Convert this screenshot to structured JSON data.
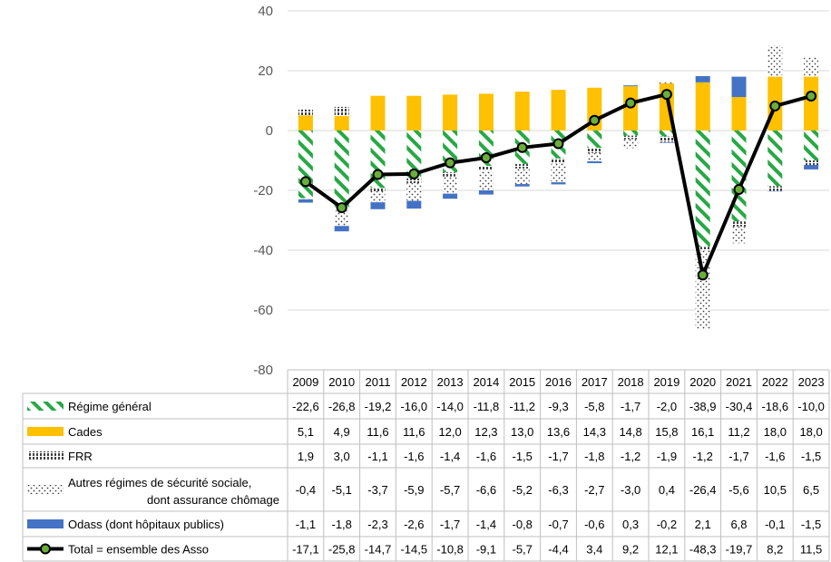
{
  "chart_data": {
    "type": "bar",
    "stacked": true,
    "years": [
      "2009",
      "2010",
      "2011",
      "2012",
      "2013",
      "2014",
      "2015",
      "2016",
      "2017",
      "2018",
      "2019",
      "2020",
      "2021",
      "2022",
      "2023"
    ],
    "y_ticks": [
      "40",
      "20",
      "0",
      "-20",
      "-40",
      "-60",
      "-80"
    ],
    "ylim": [
      -80,
      40
    ],
    "grid": true,
    "legend": "data table below chart",
    "series": [
      {
        "name": "Régime général",
        "kind": "bar",
        "pattern": "diagonal-stripes",
        "color": "#27A844",
        "values": [
          -22.6,
          -26.8,
          -19.2,
          -16.0,
          -14.0,
          -11.8,
          -11.2,
          -9.3,
          -5.8,
          -1.7,
          -2.0,
          -38.9,
          -30.4,
          -18.6,
          -10.0
        ],
        "labels": [
          "-22,6",
          "-26,8",
          "-19,2",
          "-16,0",
          "-14,0",
          "-11,8",
          "-11,2",
          "-9,3",
          "-5,8",
          "-1,7",
          "-2,0",
          "-38,9",
          "-30,4",
          "-18,6",
          "-10,0"
        ]
      },
      {
        "name": "Cades",
        "kind": "bar",
        "pattern": "solid",
        "color": "#FFC000",
        "values": [
          5.1,
          4.9,
          11.6,
          11.6,
          12.0,
          12.3,
          13.0,
          13.6,
          14.3,
          14.8,
          15.8,
          16.1,
          11.2,
          18.0,
          18.0
        ],
        "labels": [
          "5,1",
          "4,9",
          "11,6",
          "11,6",
          "12,0",
          "12,3",
          "13,0",
          "13,6",
          "14,3",
          "14,8",
          "15,8",
          "16,1",
          "11,2",
          "18,0",
          "18,0"
        ]
      },
      {
        "name": "FRR",
        "kind": "bar",
        "pattern": "vertical-dashes",
        "color": "#404040",
        "values": [
          1.9,
          3.0,
          -1.1,
          -1.6,
          -1.4,
          -1.6,
          -1.5,
          -1.7,
          -1.8,
          -1.2,
          -1.9,
          -1.2,
          -1.7,
          -1.6,
          -1.5
        ],
        "labels": [
          "1,9",
          "3,0",
          "-1,1",
          "-1,6",
          "-1,4",
          "-1,6",
          "-1,5",
          "-1,7",
          "-1,8",
          "-1,2",
          "-1,9",
          "-1,2",
          "-1,7",
          "-1,6",
          "-1,5"
        ]
      },
      {
        "name": "Autres régimes de sécurité sociale,|dont assurance chômage",
        "kind": "bar",
        "pattern": "dots",
        "color": "#404040",
        "values": [
          -0.4,
          -5.1,
          -3.7,
          -5.9,
          -5.7,
          -6.6,
          -5.2,
          -6.3,
          -2.7,
          -3.0,
          0.4,
          -26.4,
          -5.6,
          10.5,
          6.5
        ],
        "labels": [
          "-0,4",
          "-5,1",
          "-3,7",
          "-5,9",
          "-5,7",
          "-6,6",
          "-5,2",
          "-6,3",
          "-2,7",
          "-3,0",
          "0,4",
          "-26,4",
          "-5,6",
          "10,5",
          "6,5"
        ]
      },
      {
        "name": "Odass (dont hôpitaux publics)",
        "kind": "bar",
        "pattern": "solid",
        "color": "#4472C4",
        "values": [
          -1.1,
          -1.8,
          -2.3,
          -2.6,
          -1.7,
          -1.4,
          -0.8,
          -0.7,
          -0.6,
          0.3,
          -0.2,
          2.1,
          6.8,
          -0.1,
          -1.5
        ],
        "labels": [
          "-1,1",
          "-1,8",
          "-2,3",
          "-2,6",
          "-1,7",
          "-1,4",
          "-0,8",
          "-0,7",
          "-0,6",
          "0,3",
          "-0,2",
          "2,1",
          "6,8",
          "-0,1",
          "-1,5"
        ]
      },
      {
        "name": "Total = ensemble des Asso",
        "kind": "line",
        "color": "#000000",
        "marker_color": "#6AAE3A",
        "values": [
          -17.1,
          -25.8,
          -14.7,
          -14.5,
          -10.8,
          -9.1,
          -5.7,
          -4.4,
          3.4,
          9.2,
          12.1,
          -48.3,
          -19.7,
          8.2,
          11.5
        ],
        "labels": [
          "-17,1",
          "-25,8",
          "-14,7",
          "-14,5",
          "-10,8",
          "-9,1",
          "-5,7",
          "-4,4",
          "3,4",
          "9,2",
          "12,1",
          "-48,3",
          "-19,7",
          "8,2",
          "11,5"
        ]
      }
    ]
  }
}
